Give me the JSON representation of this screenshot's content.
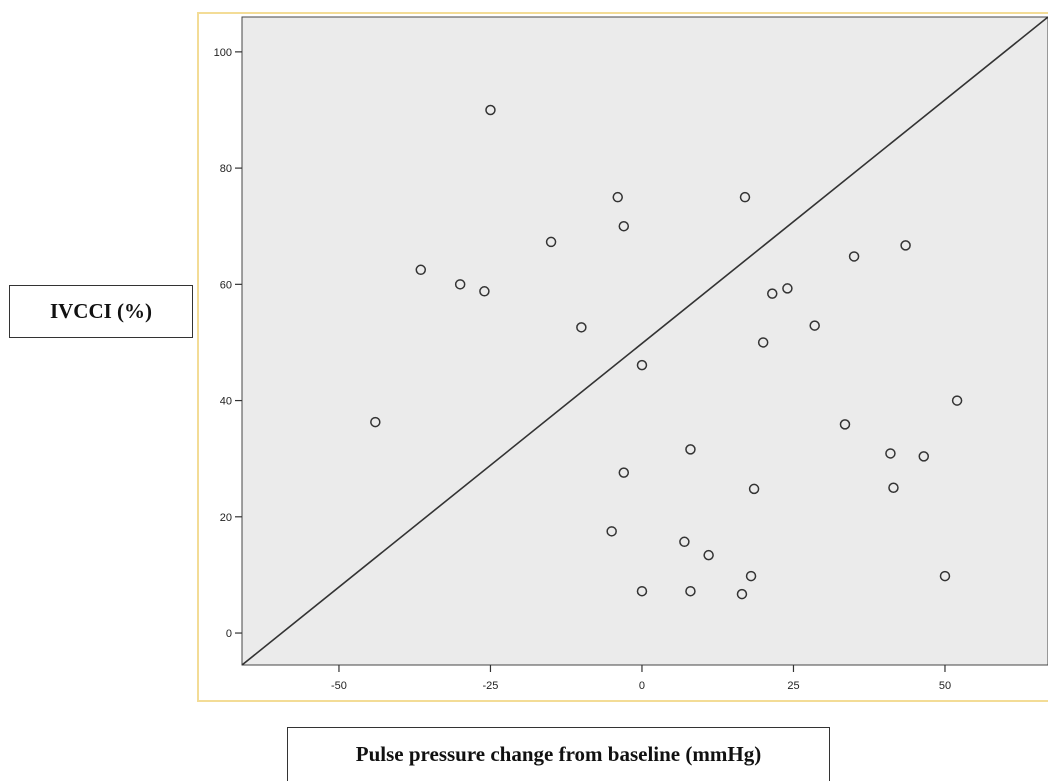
{
  "chart_data": {
    "type": "scatter",
    "xlabel": "Pulse pressure change from baseline (mmHg)",
    "ylabel": "IVCCI (%)",
    "xlim": [
      -66,
      67
    ],
    "ylim": [
      -5.5,
      106
    ],
    "x_ticks": [
      -50,
      -25,
      0,
      25,
      50
    ],
    "x_tick_labels": [
      "-50",
      "-25",
      "0",
      "25",
      "50"
    ],
    "y_ticks": [
      0,
      20,
      40,
      60,
      80,
      100
    ],
    "y_tick_labels": [
      "0",
      "20",
      "40",
      "60",
      "80",
      "100"
    ],
    "grid": false,
    "series": [
      {
        "marker": "open-circle",
        "points": [
          {
            "x": -44,
            "y": 36.3
          },
          {
            "x": -36.5,
            "y": 62.5
          },
          {
            "x": -30,
            "y": 60
          },
          {
            "x": -26,
            "y": 58.8
          },
          {
            "x": -25,
            "y": 90
          },
          {
            "x": -15,
            "y": 67.3
          },
          {
            "x": -10,
            "y": 52.6
          },
          {
            "x": -5,
            "y": 17.5
          },
          {
            "x": -4,
            "y": 75
          },
          {
            "x": -3,
            "y": 70
          },
          {
            "x": -3,
            "y": 27.6
          },
          {
            "x": 0,
            "y": 46.1
          },
          {
            "x": 0,
            "y": 7.2
          },
          {
            "x": 7,
            "y": 15.7
          },
          {
            "x": 8,
            "y": 31.6
          },
          {
            "x": 8,
            "y": 7.2
          },
          {
            "x": 11,
            "y": 13.4
          },
          {
            "x": 16.5,
            "y": 6.7
          },
          {
            "x": 17,
            "y": 75
          },
          {
            "x": 18,
            "y": 9.8
          },
          {
            "x": 18.5,
            "y": 24.8
          },
          {
            "x": 20,
            "y": 50
          },
          {
            "x": 21.5,
            "y": 58.4
          },
          {
            "x": 24,
            "y": 59.3
          },
          {
            "x": 28.5,
            "y": 52.9
          },
          {
            "x": 33.5,
            "y": 35.9
          },
          {
            "x": 35,
            "y": 64.8
          },
          {
            "x": 41,
            "y": 30.9
          },
          {
            "x": 41.5,
            "y": 25
          },
          {
            "x": 43.5,
            "y": 66.7
          },
          {
            "x": 46.5,
            "y": 30.4
          },
          {
            "x": 50,
            "y": 9.8
          },
          {
            "x": 52,
            "y": 40
          }
        ]
      }
    ],
    "reference_line": {
      "x1": -66,
      "y1": -5.5,
      "x2": 67,
      "y2": 106
    },
    "colors": {
      "plot_background": "#ebebeb",
      "frame_border": "#f3dc96",
      "marker": "#333333",
      "line": "#333333"
    }
  }
}
